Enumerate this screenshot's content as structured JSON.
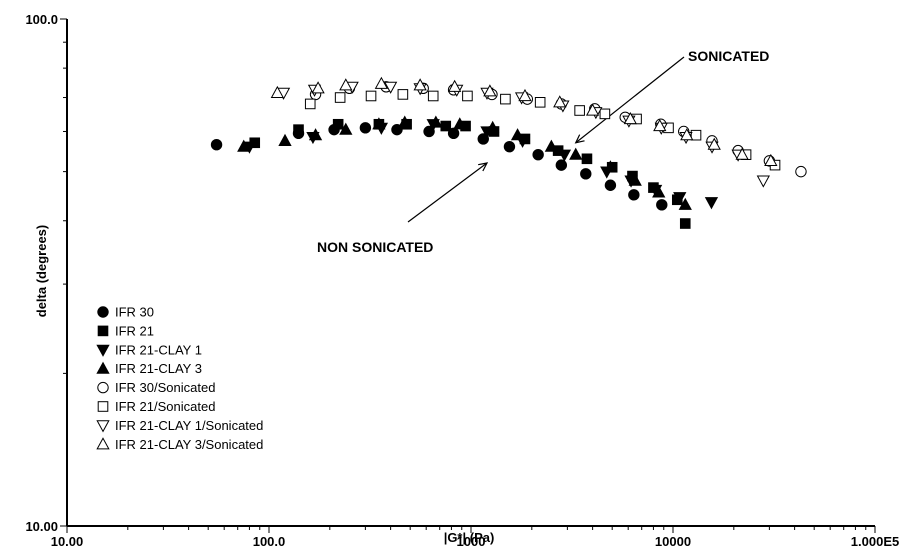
{
  "chart_data": {
    "type": "scatter",
    "title": "",
    "xlabel": "|G*| (Pa)",
    "ylabel": "delta (degrees)",
    "x_scale": "log",
    "y_scale": "log",
    "xlim": [
      10,
      100000
    ],
    "ylim": [
      10,
      100
    ],
    "x_tick_labels": [
      "10.00",
      "100.0",
      "1000",
      "10000",
      "1.000E5"
    ],
    "x_tick_values": [
      10,
      100,
      1000,
      10000,
      100000
    ],
    "y_tick_labels": [
      "10.00",
      "100.0"
    ],
    "y_tick_values": [
      10,
      100
    ],
    "grid": false,
    "legend_position": "bottom-left",
    "annotations": [
      {
        "text": "SONICATED",
        "arrow_to": [
          3300,
          57
        ]
      },
      {
        "text": "NON SONICATED",
        "arrow_to": [
          1200,
          52
        ]
      }
    ],
    "series": [
      {
        "name": "IFR 30",
        "marker": "circle",
        "filled": true,
        "points": [
          [
            55,
            56.5
          ],
          [
            140,
            59.5
          ],
          [
            210,
            60.5
          ],
          [
            300,
            61
          ],
          [
            430,
            60.5
          ],
          [
            620,
            60
          ],
          [
            820,
            59.5
          ],
          [
            1150,
            58
          ],
          [
            1550,
            56
          ],
          [
            2150,
            54
          ],
          [
            2800,
            51.5
          ],
          [
            3700,
            49.5
          ],
          [
            4900,
            47
          ],
          [
            6400,
            45
          ],
          [
            8800,
            43
          ]
        ]
      },
      {
        "name": "IFR 21",
        "marker": "square",
        "filled": true,
        "points": [
          [
            85,
            57
          ],
          [
            140,
            60.5
          ],
          [
            220,
            62
          ],
          [
            350,
            62
          ],
          [
            480,
            62
          ],
          [
            750,
            61.5
          ],
          [
            940,
            61.5
          ],
          [
            1300,
            60
          ],
          [
            1850,
            58
          ],
          [
            2700,
            55
          ],
          [
            3750,
            53
          ],
          [
            5000,
            51
          ],
          [
            6300,
            49
          ],
          [
            8000,
            46.5
          ],
          [
            10500,
            44
          ],
          [
            11500,
            39.5
          ]
        ]
      },
      {
        "name": "IFR 21-CLAY 1",
        "marker": "triangle-down",
        "filled": true,
        "points": [
          [
            80,
            56
          ],
          [
            165,
            58.5
          ],
          [
            360,
            61
          ],
          [
            650,
            62
          ],
          [
            1200,
            60
          ],
          [
            1800,
            57.5
          ],
          [
            2900,
            54
          ],
          [
            4700,
            50
          ],
          [
            6200,
            48
          ],
          [
            8200,
            46
          ],
          [
            10800,
            44.5
          ],
          [
            15500,
            43.5
          ]
        ]
      },
      {
        "name": "IFR 21-CLAY 3",
        "marker": "triangle-up",
        "filled": true,
        "points": [
          [
            75,
            56
          ],
          [
            120,
            57.5
          ],
          [
            170,
            59
          ],
          [
            240,
            60.5
          ],
          [
            350,
            62
          ],
          [
            470,
            62.5
          ],
          [
            670,
            62.5
          ],
          [
            880,
            62
          ],
          [
            1280,
            61
          ],
          [
            1700,
            59
          ],
          [
            2500,
            56
          ],
          [
            3300,
            54
          ],
          [
            4900,
            51
          ],
          [
            6500,
            48
          ],
          [
            8500,
            45.5
          ],
          [
            11500,
            43
          ]
        ]
      },
      {
        "name": "IFR 30/Sonicated",
        "marker": "circle",
        "filled": false,
        "points": [
          [
            170,
            71
          ],
          [
            250,
            73
          ],
          [
            380,
            73.5
          ],
          [
            580,
            73
          ],
          [
            820,
            72.5
          ],
          [
            1270,
            71
          ],
          [
            1900,
            69.5
          ],
          [
            2800,
            68
          ],
          [
            4100,
            66.5
          ],
          [
            5800,
            64
          ],
          [
            8700,
            62
          ],
          [
            11300,
            60
          ],
          [
            15600,
            57.5
          ],
          [
            21000,
            55
          ],
          [
            30000,
            52.5
          ],
          [
            43000,
            50
          ]
        ]
      },
      {
        "name": "IFR 21/Sonicated",
        "marker": "square",
        "filled": false,
        "points": [
          [
            160,
            68
          ],
          [
            225,
            70
          ],
          [
            320,
            70.5
          ],
          [
            460,
            71
          ],
          [
            650,
            70.5
          ],
          [
            960,
            70.5
          ],
          [
            1480,
            69.5
          ],
          [
            2200,
            68.5
          ],
          [
            3450,
            66
          ],
          [
            4600,
            65
          ],
          [
            6600,
            63.5
          ],
          [
            9500,
            61
          ],
          [
            13000,
            59
          ],
          [
            23000,
            54
          ],
          [
            32000,
            51.5
          ]
        ]
      },
      {
        "name": "IFR 21-CLAY 1/Sonicated",
        "marker": "triangle-down",
        "filled": false,
        "points": [
          [
            118,
            71.5
          ],
          [
            168,
            72.5
          ],
          [
            258,
            73.5
          ],
          [
            400,
            73.5
          ],
          [
            560,
            73
          ],
          [
            850,
            72.5
          ],
          [
            1200,
            71.5
          ],
          [
            1780,
            70
          ],
          [
            2850,
            67.5
          ],
          [
            4150,
            65.5
          ],
          [
            6050,
            63
          ],
          [
            8750,
            61
          ],
          [
            11600,
            58.5
          ],
          [
            15600,
            56
          ],
          [
            21000,
            54
          ],
          [
            28000,
            48
          ]
        ]
      },
      {
        "name": "IFR 21-CLAY 3/Sonicated",
        "marker": "triangle-up",
        "filled": false,
        "points": [
          [
            110,
            71.5
          ],
          [
            175,
            73
          ],
          [
            240,
            74
          ],
          [
            360,
            74.5
          ],
          [
            560,
            74
          ],
          [
            830,
            73.5
          ],
          [
            1240,
            72
          ],
          [
            1850,
            70.5
          ],
          [
            2750,
            68.5
          ],
          [
            4000,
            66
          ],
          [
            6150,
            63.5
          ],
          [
            8600,
            61.5
          ],
          [
            11700,
            59
          ],
          [
            16000,
            56.5
          ],
          [
            22000,
            54
          ],
          [
            30500,
            52.5
          ]
        ]
      }
    ]
  }
}
